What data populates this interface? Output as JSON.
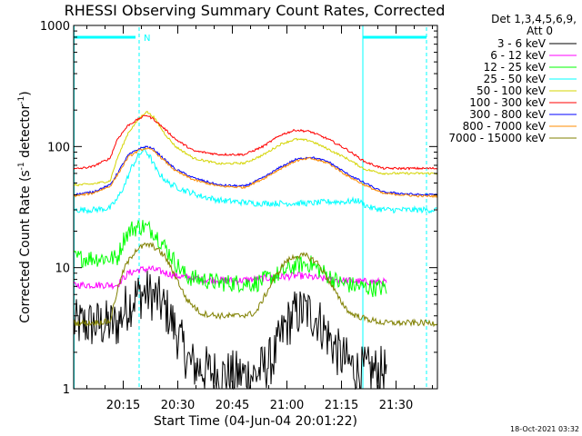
{
  "chart_data": {
    "type": "line",
    "title": "RHESSI Observing Summary Count Rates, Corrected",
    "xlabel": "Start Time (04-Jun-04 20:01:22)",
    "ylabel_parts": [
      "Corrected Count Rate (s",
      "-1",
      " detector",
      "-1",
      ")"
    ],
    "yscale": "log",
    "ylim": [
      1,
      1000
    ],
    "xlim_minutes": [
      0,
      100
    ],
    "x_tick_labels": [
      {
        "label": "20:15",
        "minute": 13.63
      },
      {
        "label": "20:30",
        "minute": 28.63
      },
      {
        "label": "20:45",
        "minute": 43.63
      },
      {
        "label": "21:00",
        "minute": 58.63
      },
      {
        "label": "21:15",
        "minute": 73.63
      },
      {
        "label": "21:30",
        "minute": 88.63
      }
    ],
    "y_tick_labels": [
      {
        "label": "1000",
        "value": 1000
      },
      {
        "label": "100",
        "value": 100
      },
      {
        "label": "10",
        "value": 10
      },
      {
        "label": "1",
        "value": 1
      }
    ],
    "legend_title": [
      "Det 1,3,4,5,6,9,",
      "Att 0"
    ],
    "footer_date": "18-Oct-2021 03:32",
    "night_marker": {
      "label": "N",
      "start_minute": 0,
      "end_minute": 18.0,
      "color": "#00ffff"
    },
    "saa_marker": {
      "start_minute": 79.5,
      "end_minute": 97.0,
      "color": "#00ffff"
    },
    "series": [
      {
        "name": "3 - 6 keV",
        "color": "#000000",
        "end": 86,
        "noise": 0.42,
        "points": [
          [
            12,
            3.4
          ],
          [
            14,
            4.5
          ],
          [
            17,
            5.8
          ],
          [
            20,
            6.2
          ],
          [
            23,
            5.5
          ],
          [
            26,
            4.2
          ],
          [
            29,
            2.6
          ],
          [
            32,
            1.6
          ],
          [
            40,
            1.3
          ],
          [
            50,
            1.3
          ],
          [
            55,
            1.8
          ],
          [
            58,
            3.2
          ],
          [
            61,
            4.2
          ],
          [
            64,
            4.4
          ],
          [
            67,
            3.8
          ],
          [
            70,
            2.7
          ],
          [
            73,
            1.9
          ],
          [
            78,
            1.4
          ],
          [
            86,
            1.4
          ]
        ]
      },
      {
        "name": "6 - 12 keV",
        "color": "#ff00ff",
        "end": 86,
        "noise": 0.06,
        "points": [
          [
            12,
            7.2
          ],
          [
            15,
            9.0
          ],
          [
            18,
            9.6
          ],
          [
            21,
            9.8
          ],
          [
            24,
            9.3
          ],
          [
            28,
            8.6
          ],
          [
            35,
            8.0
          ],
          [
            45,
            7.8
          ],
          [
            55,
            8.3
          ],
          [
            62,
            8.6
          ],
          [
            70,
            8.0
          ],
          [
            78,
            7.7
          ],
          [
            86,
            7.6
          ]
        ]
      },
      {
        "name": "12 - 25 keV",
        "color": "#00ff00",
        "end": 86,
        "noise": 0.15,
        "points": [
          [
            12,
            12
          ],
          [
            14,
            18
          ],
          [
            16,
            21
          ],
          [
            19,
            22
          ],
          [
            22,
            20
          ],
          [
            25,
            15
          ],
          [
            28,
            11
          ],
          [
            31,
            8.4
          ],
          [
            40,
            7.5
          ],
          [
            50,
            7.4
          ],
          [
            57,
            9.0
          ],
          [
            61,
            10.5
          ],
          [
            65,
            10.8
          ],
          [
            69,
            9.0
          ],
          [
            73,
            7.5
          ],
          [
            78,
            7.0
          ],
          [
            82,
            6.8
          ],
          [
            86,
            6.8
          ]
        ]
      },
      {
        "name": "25 - 50 keV",
        "color": "#00ffff",
        "end": 100,
        "noise": 0.05,
        "points": [
          [
            0,
            30
          ],
          [
            5,
            30
          ],
          [
            10,
            31
          ],
          [
            12,
            37
          ],
          [
            14,
            48
          ],
          [
            16,
            68
          ],
          [
            18,
            86
          ],
          [
            19.5,
            95
          ],
          [
            21,
            82
          ],
          [
            23,
            62
          ],
          [
            26,
            50
          ],
          [
            30,
            44
          ],
          [
            35,
            39
          ],
          [
            40,
            36
          ],
          [
            45,
            35
          ],
          [
            50,
            34
          ],
          [
            55,
            34
          ],
          [
            60,
            34
          ],
          [
            65,
            34
          ],
          [
            70,
            35
          ],
          [
            75,
            35
          ],
          [
            78,
            36
          ],
          [
            80,
            33
          ],
          [
            82,
            31
          ],
          [
            86,
            30
          ],
          [
            95,
            30
          ],
          [
            100,
            30
          ]
        ]
      },
      {
        "name": "50 - 100 keV",
        "color": "#d4d400",
        "end": 100,
        "noise": 0.018,
        "points": [
          [
            0,
            48
          ],
          [
            5,
            49
          ],
          [
            10,
            52
          ],
          [
            12,
            80
          ],
          [
            15,
            130
          ],
          [
            18,
            170
          ],
          [
            20,
            195
          ],
          [
            22,
            175
          ],
          [
            25,
            128
          ],
          [
            28,
            100
          ],
          [
            33,
            80
          ],
          [
            40,
            72
          ],
          [
            47,
            73
          ],
          [
            52,
            85
          ],
          [
            57,
            105
          ],
          [
            61,
            115
          ],
          [
            65,
            112
          ],
          [
            70,
            95
          ],
          [
            75,
            80
          ],
          [
            80,
            65
          ],
          [
            85,
            60
          ],
          [
            95,
            60
          ],
          [
            100,
            60
          ]
        ]
      },
      {
        "name": "100 - 300 keV",
        "color": "#ff0000",
        "end": 100,
        "noise": 0.018,
        "points": [
          [
            0,
            65
          ],
          [
            5,
            68
          ],
          [
            10,
            80
          ],
          [
            12,
            115
          ],
          [
            15,
            150
          ],
          [
            18,
            170
          ],
          [
            20,
            182
          ],
          [
            22,
            168
          ],
          [
            25,
            140
          ],
          [
            28,
            115
          ],
          [
            33,
            92
          ],
          [
            40,
            86
          ],
          [
            47,
            86
          ],
          [
            52,
            100
          ],
          [
            57,
            125
          ],
          [
            61,
            137
          ],
          [
            65,
            133
          ],
          [
            70,
            115
          ],
          [
            75,
            95
          ],
          [
            80,
            75
          ],
          [
            85,
            66
          ],
          [
            95,
            66
          ],
          [
            100,
            66
          ]
        ]
      },
      {
        "name": "300 - 800 keV",
        "color": "#0000ff",
        "end": 100,
        "noise": 0.018,
        "points": [
          [
            0,
            40
          ],
          [
            5,
            42
          ],
          [
            10,
            48
          ],
          [
            12,
            60
          ],
          [
            15,
            85
          ],
          [
            18,
            96
          ],
          [
            20,
            100
          ],
          [
            22,
            95
          ],
          [
            25,
            78
          ],
          [
            28,
            65
          ],
          [
            33,
            55
          ],
          [
            40,
            48
          ],
          [
            47,
            47
          ],
          [
            52,
            55
          ],
          [
            57,
            68
          ],
          [
            61,
            78
          ],
          [
            65,
            82
          ],
          [
            70,
            75
          ],
          [
            75,
            60
          ],
          [
            80,
            50
          ],
          [
            85,
            42
          ],
          [
            95,
            40
          ],
          [
            100,
            40
          ]
        ]
      },
      {
        "name": "800 - 7000 keV",
        "color": "#ff8c00",
        "end": 100,
        "noise": 0.018,
        "points": [
          [
            0,
            39
          ],
          [
            5,
            41
          ],
          [
            10,
            47
          ],
          [
            12,
            58
          ],
          [
            15,
            82
          ],
          [
            18,
            93
          ],
          [
            20,
            97
          ],
          [
            22,
            92
          ],
          [
            25,
            76
          ],
          [
            28,
            63
          ],
          [
            33,
            53
          ],
          [
            40,
            47
          ],
          [
            47,
            46
          ],
          [
            52,
            54
          ],
          [
            57,
            66
          ],
          [
            61,
            76
          ],
          [
            65,
            80
          ],
          [
            70,
            73
          ],
          [
            75,
            58
          ],
          [
            80,
            48
          ],
          [
            85,
            41
          ],
          [
            95,
            39
          ],
          [
            100,
            39
          ]
        ]
      },
      {
        "name": "7000 - 15000 keV",
        "color": "#808000",
        "end": 100,
        "noise": 0.05,
        "points": [
          [
            0,
            3.5
          ],
          [
            5,
            3.5
          ],
          [
            10,
            3.6
          ],
          [
            12,
            6.5
          ],
          [
            14,
            10
          ],
          [
            17,
            14
          ],
          [
            20,
            15.5
          ],
          [
            22,
            15
          ],
          [
            25,
            12.5
          ],
          [
            28,
            8.5
          ],
          [
            31,
            5.5
          ],
          [
            35,
            4.2
          ],
          [
            40,
            4.0
          ],
          [
            45,
            4.0
          ],
          [
            50,
            4.2
          ],
          [
            55,
            8.0
          ],
          [
            58,
            11
          ],
          [
            61,
            12.5
          ],
          [
            64,
            12.5
          ],
          [
            67,
            11
          ],
          [
            70,
            8.0
          ],
          [
            73,
            5.5
          ],
          [
            76,
            4.2
          ],
          [
            80,
            3.8
          ],
          [
            85,
            3.5
          ],
          [
            100,
            3.5
          ]
        ]
      }
    ]
  }
}
